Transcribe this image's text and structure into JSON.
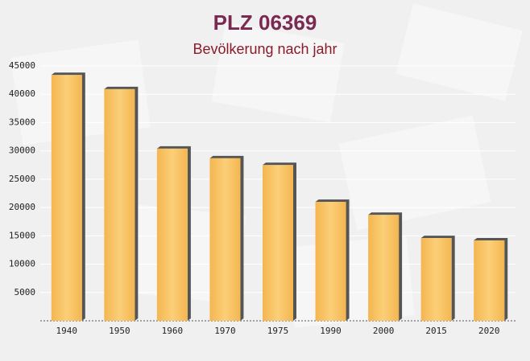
{
  "chart_data": {
    "type": "bar",
    "title": "PLZ 06369",
    "subtitle": "Bevölkerung nach jahr",
    "categories": [
      "1940",
      "1950",
      "1960",
      "1970",
      "1975",
      "1990",
      "2000",
      "2015",
      "2020"
    ],
    "values": [
      43400,
      40900,
      30400,
      28700,
      27500,
      21000,
      18700,
      14600,
      14200
    ],
    "color": "#f7bf5c",
    "ylim": [
      0,
      45000
    ],
    "yticks": [
      5000,
      10000,
      15000,
      20000,
      25000,
      30000,
      35000,
      40000,
      45000
    ],
    "grid": true
  }
}
